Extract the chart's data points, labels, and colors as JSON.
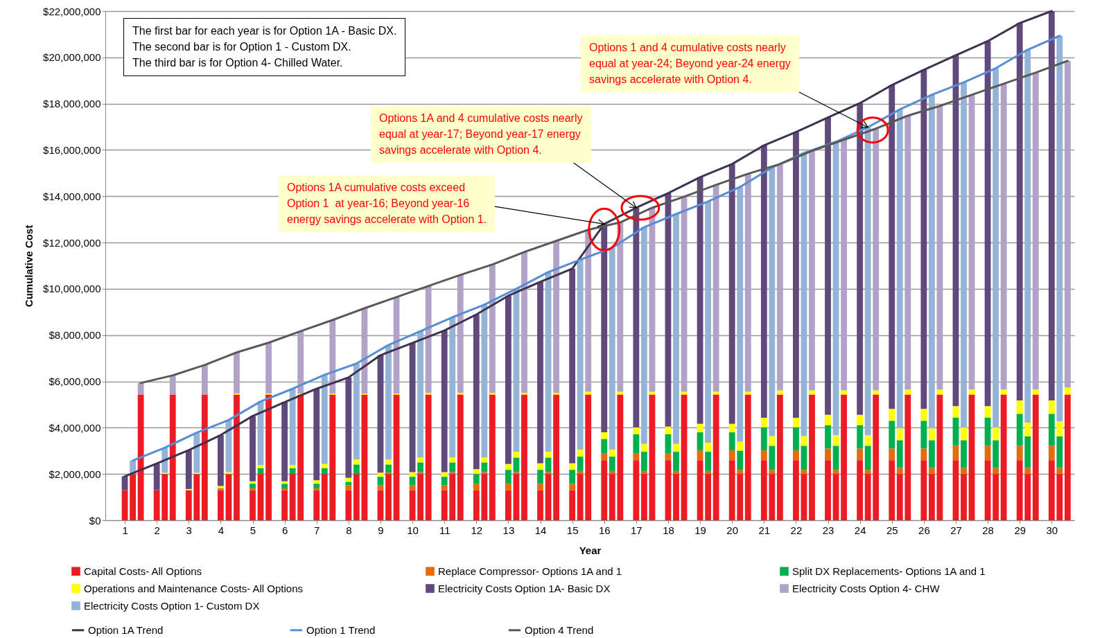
{
  "chart_data": {
    "type": "bar",
    "stacked": true,
    "xlabel": "Year",
    "ylabel": "Cumulative Cost",
    "legend": "bottom",
    "grid": "y",
    "xlim": [
      0.5,
      30.6
    ],
    "xticks": [
      1,
      2,
      3,
      4,
      5,
      6,
      7,
      8,
      9,
      10,
      11,
      12,
      13,
      14,
      15,
      16,
      17,
      18,
      19,
      20,
      21,
      22,
      23,
      24,
      25,
      26,
      27,
      28,
      29,
      30
    ],
    "ylim": [
      0,
      22000000
    ],
    "yticks": [
      {
        "value": 0,
        "label": "$0"
      },
      {
        "value": 2000000,
        "label": "$2,000,000"
      },
      {
        "value": 4000000,
        "label": "$4,000,000"
      },
      {
        "value": 6000000,
        "label": "$6,000,000"
      },
      {
        "value": 8000000,
        "label": "$8,000,000"
      },
      {
        "value": 10000000,
        "label": "$10,000,000"
      },
      {
        "value": 12000000,
        "label": "$12,000,000"
      },
      {
        "value": 14000000,
        "label": "$14,000,000"
      },
      {
        "value": 16000000,
        "label": "$16,000,000"
      },
      {
        "value": 18000000,
        "label": "$18,000,000"
      },
      {
        "value": 20000000,
        "label": "$20,000,000"
      },
      {
        "value": 22000000,
        "label": "$22,000,000"
      }
    ],
    "x": [
      1,
      1.25,
      1.5,
      2,
      2.25,
      2.5,
      3,
      3.25,
      3.5,
      4,
      4.25,
      4.5,
      5,
      5.25,
      5.5,
      6,
      6.25,
      6.5,
      7,
      7.25,
      7.5,
      8,
      8.25,
      8.5,
      9,
      9.25,
      9.5,
      10,
      10.25,
      10.5,
      11,
      11.25,
      11.5,
      12,
      12.25,
      12.5,
      13,
      13.25,
      13.5,
      14,
      14.25,
      14.5,
      15,
      15.25,
      15.5,
      16,
      16.25,
      16.5,
      17,
      17.25,
      17.5,
      18,
      18.25,
      18.5,
      19,
      19.25,
      19.5,
      20,
      20.25,
      20.5,
      21,
      21.25,
      21.5,
      22,
      22.25,
      22.5,
      23,
      23.25,
      23.5,
      24,
      24.25,
      24.5,
      25,
      25.25,
      25.5,
      26,
      26.25,
      26.5,
      27,
      27.25,
      27.5,
      28,
      28.25,
      28.5,
      29,
      29.25,
      29.5,
      30,
      30.25,
      30.5
    ],
    "series": [
      {
        "name": "Capital Costs- All Options",
        "color": "#ed1c24",
        "values": [
          1300000,
          2000000,
          5430000,
          1300000,
          2000000,
          5430000,
          1300000,
          2000000,
          5430000,
          1300000,
          2000000,
          5430000,
          1300000,
          2000000,
          5430000,
          1300000,
          2000000,
          5430000,
          1300000,
          2000000,
          5430000,
          1300000,
          2000000,
          5430000,
          1300000,
          2000000,
          5430000,
          1300000,
          2000000,
          5430000,
          1300000,
          2000000,
          5430000,
          1300000,
          2000000,
          5430000,
          1300000,
          2000000,
          5430000,
          1300000,
          2000000,
          5430000,
          1300000,
          2000000,
          5430000,
          2600000,
          2000000,
          5430000,
          2600000,
          2000000,
          5430000,
          2600000,
          2000000,
          5430000,
          2600000,
          2000000,
          5430000,
          2600000,
          2000000,
          5430000,
          2600000,
          2000000,
          5430000,
          2600000,
          2000000,
          5430000,
          2600000,
          2000000,
          5430000,
          2600000,
          2000000,
          5430000,
          2600000,
          2000000,
          5430000,
          2600000,
          2000000,
          5430000,
          2600000,
          2000000,
          5430000,
          2600000,
          2000000,
          5430000,
          2600000,
          2000000,
          5430000,
          2600000,
          2000000,
          5430000
        ]
      },
      {
        "name": "Replace Compressor- Options 1A and 1",
        "color": "#e46c0a",
        "values": [
          null,
          null,
          null,
          null,
          null,
          null,
          null,
          null,
          null,
          80000,
          null,
          null,
          80000,
          null,
          null,
          80000,
          null,
          null,
          80000,
          null,
          null,
          210000,
          null,
          null,
          210000,
          60000,
          null,
          210000,
          80000,
          null,
          210000,
          80000,
          null,
          280000,
          80000,
          null,
          280000,
          80000,
          null,
          280000,
          80000,
          null,
          280000,
          130000,
          null,
          280000,
          130000,
          null,
          280000,
          130000,
          null,
          280000,
          130000,
          null,
          420000,
          130000,
          null,
          420000,
          180000,
          null,
          420000,
          180000,
          null,
          420000,
          180000,
          null,
          500000,
          180000,
          null,
          500000,
          180000,
          null,
          500000,
          260000,
          null,
          500000,
          260000,
          null,
          620000,
          260000,
          null,
          620000,
          260000,
          null,
          620000,
          260000,
          null,
          620000,
          260000,
          null
        ]
      },
      {
        "name": "Split DX Replacements- Options 1A and 1",
        "color": "#00b050",
        "values": [
          null,
          null,
          null,
          null,
          null,
          null,
          null,
          null,
          null,
          null,
          null,
          null,
          200000,
          250000,
          null,
          200000,
          250000,
          null,
          200000,
          250000,
          null,
          150000,
          410000,
          null,
          370000,
          350000,
          null,
          370000,
          420000,
          null,
          370000,
          420000,
          null,
          420000,
          420000,
          null,
          600000,
          630000,
          null,
          600000,
          630000,
          null,
          600000,
          620000,
          null,
          630000,
          620000,
          null,
          840000,
          830000,
          null,
          840000,
          830000,
          null,
          780000,
          830000,
          null,
          780000,
          830000,
          null,
          990000,
          1040000,
          null,
          990000,
          1040000,
          null,
          1000000,
          1040000,
          null,
          1000000,
          1040000,
          null,
          1200000,
          1200000,
          null,
          1200000,
          1200000,
          null,
          1210000,
          1200000,
          null,
          1210000,
          1200000,
          null,
          1380000,
          1370000,
          null,
          1380000,
          1370000,
          null
        ]
      },
      {
        "name": "Operations and Maintenance Costs- All Options",
        "color": "#ffff00",
        "values": [
          null,
          null,
          null,
          null,
          50000,
          null,
          50000,
          50000,
          null,
          100000,
          80000,
          50000,
          100000,
          130000,
          50000,
          100000,
          130000,
          50000,
          150000,
          180000,
          50000,
          170000,
          220000,
          50000,
          180000,
          220000,
          50000,
          200000,
          210000,
          80000,
          200000,
          210000,
          80000,
          210000,
          210000,
          80000,
          250000,
          250000,
          80000,
          280000,
          250000,
          80000,
          280000,
          300000,
          120000,
          290000,
          300000,
          120000,
          290000,
          340000,
          120000,
          330000,
          340000,
          120000,
          370000,
          390000,
          120000,
          370000,
          390000,
          120000,
          420000,
          420000,
          180000,
          420000,
          420000,
          180000,
          460000,
          460000,
          180000,
          460000,
          460000,
          180000,
          510000,
          510000,
          220000,
          510000,
          510000,
          220000,
          500000,
          550000,
          220000,
          500000,
          550000,
          220000,
          580000,
          590000,
          220000,
          580000,
          640000,
          300000
        ]
      },
      {
        "name": "Electricity Costs Option 1A- Basic DX",
        "color": "#604a7b",
        "values": [
          600000,
          null,
          null,
          1150000,
          null,
          null,
          1680000,
          null,
          null,
          2200000,
          null,
          null,
          2820000,
          null,
          null,
          3420000,
          null,
          null,
          3950000,
          null,
          null,
          4340000,
          null,
          null,
          5070000,
          null,
          null,
          5580000,
          null,
          null,
          6120000,
          null,
          null,
          6680000,
          null,
          null,
          7270000,
          null,
          null,
          7840000,
          null,
          null,
          8410000,
          null,
          null,
          9000000,
          null,
          null,
          9490000,
          null,
          null,
          10080000,
          null,
          null,
          10650000,
          null,
          null,
          11220000,
          null,
          null,
          11770000,
          null,
          null,
          12340000,
          null,
          null,
          12840000,
          null,
          null,
          13460000,
          null,
          null,
          13990000,
          null,
          null,
          14650000,
          null,
          null,
          15160000,
          null,
          null,
          15770000,
          null,
          null,
          16300000,
          null,
          null,
          16820000,
          null,
          null
        ]
      },
      {
        "name": "Electricity Costs Option 4- CHW",
        "color": "#b3a2c7",
        "values": [
          null,
          null,
          500000,
          null,
          null,
          830000,
          null,
          null,
          1280000,
          null,
          null,
          1770000,
          null,
          null,
          2190000,
          null,
          null,
          2690000,
          null,
          null,
          3170000,
          null,
          null,
          3680000,
          null,
          null,
          4160000,
          null,
          null,
          4610000,
          null,
          null,
          5090000,
          null,
          null,
          5540000,
          null,
          null,
          6080000,
          null,
          null,
          6560000,
          null,
          null,
          7000000,
          null,
          null,
          7320000,
          null,
          null,
          7950000,
          null,
          null,
          8430000,
          null,
          null,
          8940000,
          null,
          null,
          9420000,
          null,
          null,
          9780000,
          null,
          null,
          10350000,
          null,
          null,
          10830000,
          null,
          null,
          11310000,
          null,
          null,
          11830000,
          null,
          null,
          12250000,
          null,
          null,
          12730000,
          null,
          null,
          13210000,
          null,
          null,
          13690000,
          null,
          null,
          14120000
        ]
      },
      {
        "name": "Electricity Costs Option 1- Custom DX",
        "color": "#95b3d7",
        "values": [
          null,
          580000,
          null,
          null,
          1080000,
          null,
          null,
          1730000,
          null,
          null,
          2250000,
          null,
          null,
          2750000,
          null,
          null,
          3300000,
          null,
          null,
          3850000,
          null,
          null,
          4140000,
          null,
          null,
          4940000,
          null,
          null,
          5460000,
          null,
          null,
          6060000,
          null,
          null,
          6600000,
          null,
          null,
          7040000,
          null,
          null,
          7760000,
          null,
          null,
          8210000,
          null,
          null,
          8720000,
          null,
          null,
          9360000,
          null,
          null,
          9930000,
          null,
          null,
          10420000,
          null,
          null,
          11000000,
          null,
          null,
          11600000,
          null,
          null,
          12230000,
          null,
          null,
          12670000,
          null,
          null,
          13300000,
          null,
          null,
          13780000,
          null,
          null,
          14410000,
          null,
          null,
          14910000,
          null,
          null,
          15520000,
          null,
          null,
          16110000,
          null,
          null,
          16660000,
          null
        ]
      },
      {
        "name": "Option 1A Trend",
        "type": "line",
        "color": "#403152",
        "x": [
          1,
          2,
          3,
          4,
          5,
          6,
          7,
          8,
          9,
          10,
          11,
          12,
          13,
          14,
          15,
          16,
          17,
          18,
          19,
          20,
          21,
          22,
          23,
          24,
          25,
          26,
          27,
          28,
          29,
          30
        ],
        "values": [
          1900000,
          2450000,
          3030000,
          3680000,
          4500000,
          5100000,
          5680000,
          6170000,
          7130000,
          7660000,
          8200000,
          8890000,
          9700000,
          10300000,
          10870000,
          12800000,
          13500000,
          14130000,
          14820000,
          15390000,
          16200000,
          16770000,
          17400000,
          18020000,
          18800000,
          19460000,
          20090000,
          20700000,
          21480000,
          22000000
        ]
      },
      {
        "name": "Option 1 Trend",
        "type": "line",
        "color": "#558ed5",
        "x": [
          1.25,
          2.25,
          3.25,
          4.25,
          5.25,
          6.25,
          7.25,
          8.25,
          9.25,
          10.25,
          11.25,
          12.25,
          13.25,
          14.25,
          15.25,
          16.25,
          17.25,
          18.25,
          19.25,
          20.25,
          21.25,
          22.25,
          23.25,
          24.25,
          25.25,
          26.25,
          27.25,
          28.25,
          29.25,
          30.25
        ],
        "values": [
          2580000,
          3130000,
          3780000,
          4330000,
          5130000,
          5680000,
          6280000,
          6770000,
          7570000,
          8170000,
          8770000,
          9310000,
          10000000,
          10720000,
          11260000,
          11770000,
          12660000,
          13230000,
          13770000,
          14400000,
          15240000,
          15870000,
          16350000,
          16980000,
          17750000,
          18380000,
          18920000,
          19530000,
          20330000,
          20930000
        ]
      },
      {
        "name": "Option 4 Trend",
        "type": "line",
        "color": "#595959",
        "x": [
          1.5,
          2.5,
          3.5,
          4.5,
          5.5,
          6.5,
          7.5,
          8.5,
          9.5,
          10.5,
          11.5,
          12.5,
          13.5,
          14.5,
          15.5,
          16.5,
          17.5,
          18.5,
          19.5,
          20.5,
          21.5,
          22.5,
          23.5,
          24.5,
          25.5,
          26.5,
          27.5,
          28.5,
          29.5,
          30.5
        ],
        "values": [
          5930000,
          6260000,
          6710000,
          7250000,
          7670000,
          8170000,
          8650000,
          9160000,
          9640000,
          10120000,
          10600000,
          11050000,
          11590000,
          12070000,
          12550000,
          12870000,
          13500000,
          13980000,
          14490000,
          14970000,
          15390000,
          15960000,
          16440000,
          16920000,
          17480000,
          17900000,
          18380000,
          18860000,
          19340000,
          19850000
        ]
      }
    ],
    "annotations": [
      "The first bar for each year is for Option 1A - Basic DX.\nThe second bar is for Option 1 - Custom DX.\nThe third bar is for Option 4- Chilled Water.",
      {
        "text": "Options 1A cumulative costs exceed\nOption 1  at year-16; Beyond year-16\nenergy savings accelerate with Option 1.",
        "x": 16,
        "y": 12800000
      },
      {
        "text": "Options 1A and 4 cumulative costs nearly\nequal at year-17; Beyond year-17 energy\nsavings accelerate with Option 4.",
        "x": 17,
        "y": 13500000
      },
      {
        "text": "Options 1 and 4 cumulative costs nearly\nequal at year-24; Beyond year-24 energy\nsavings accelerate with Option 4.",
        "x": 24.25,
        "y": 16980000
      }
    ]
  }
}
